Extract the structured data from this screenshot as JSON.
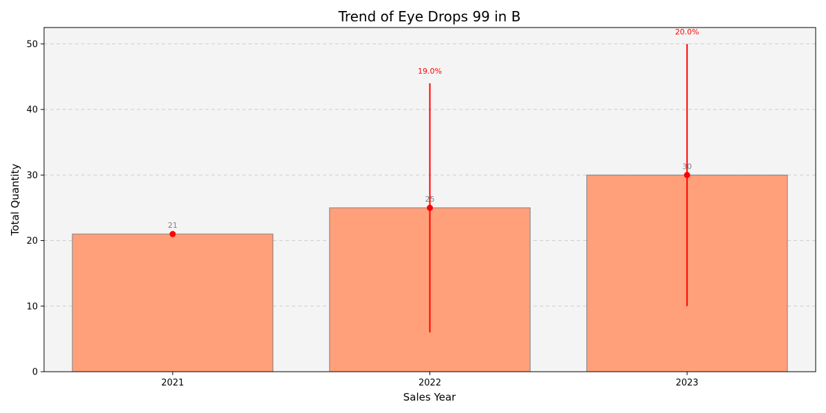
{
  "chart_data": {
    "type": "bar",
    "title": "Trend of Eye Drops 99 in B",
    "xlabel": "Sales Year",
    "ylabel": "Total Quantity",
    "categories": [
      "2021",
      "2022",
      "2023"
    ],
    "values": [
      21,
      25,
      30
    ],
    "value_labels": [
      "21",
      "25",
      "30"
    ],
    "error_bars": [
      {
        "low": 21,
        "high": 21,
        "label": ""
      },
      {
        "low": 6,
        "high": 44,
        "label": "19.0%"
      },
      {
        "low": 10,
        "high": 50,
        "label": "20.0%"
      }
    ],
    "ylim": [
      0,
      52.5
    ],
    "yticks": [
      0,
      10,
      20,
      30,
      40,
      50
    ],
    "grid": "y-dashed",
    "legend": "none",
    "colors": {
      "plot_background": "#f4f4f4",
      "bar_fill": "#ffa07a",
      "bar_edge": "#808080",
      "error_line": "#ff0000",
      "marker": "#ff0000",
      "value_label": "#808080",
      "pct_label": "#ff0000",
      "grid": "#cccccc"
    }
  }
}
